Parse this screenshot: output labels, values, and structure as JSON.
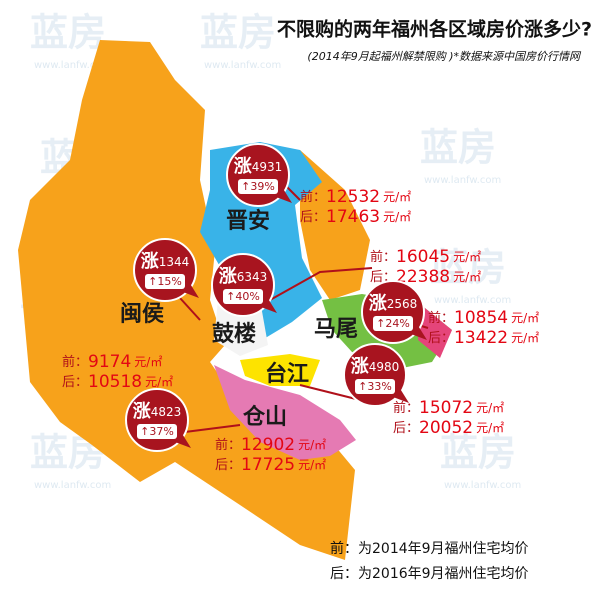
{
  "title": "不限购的两年福州各区域房价涨多少?",
  "subtitle": "(2014年9月起福州解禁限购 )*数据来源中国房价行情网",
  "labels": {
    "before": "前：",
    "after": "后：",
    "rise": "涨",
    "up": "↑",
    "unit": "元/㎡"
  },
  "districts": [
    {
      "name": "晋安",
      "rise": 4931,
      "rise_percent": "39%",
      "before": 12532,
      "after": 17463
    },
    {
      "name": "闽侯",
      "rise": 1344,
      "rise_percent": "15%",
      "before": 9174,
      "after": 10518
    },
    {
      "name": "鼓楼",
      "rise": 6343,
      "rise_percent": "40%",
      "before": 16045,
      "after": 22388
    },
    {
      "name": "马尾",
      "rise": 2568,
      "rise_percent": "24%",
      "before": 10854,
      "after": 13422
    },
    {
      "name": "台江",
      "rise": 4980,
      "rise_percent": "33%",
      "before": 15072,
      "after": 20052
    },
    {
      "name": "仓山",
      "rise": 4823,
      "rise_percent": "37%",
      "before": 12902,
      "after": 17725
    }
  ],
  "legend": [
    "前：为2014年9月福州住宅均价",
    "后：为2016年9月福州住宅均价"
  ],
  "watermark": {
    "brand": "蓝房",
    "url": "www.lanfw.com"
  }
}
